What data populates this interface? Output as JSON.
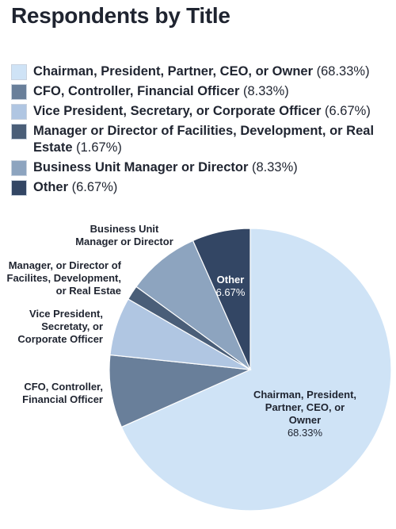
{
  "chart_data": {
    "type": "pie",
    "title": "Respondents by Title",
    "legend_position": "top",
    "colors": [
      "#cfe3f6",
      "#697f9a",
      "#b0c6e2",
      "#4a5e78",
      "#8da4bf",
      "#334664"
    ],
    "slices": [
      {
        "legend_label": "Chairman, President, Partner, CEO, or Owner",
        "legend_value": "(68.33%)",
        "value": 68.33
      },
      {
        "legend_label": "CFO, Controller, Financial Officer",
        "legend_value": "(8.33%)",
        "value": 8.33
      },
      {
        "legend_label": "Vice President, Secretary, or Corporate Officer",
        "legend_value": "(6.67%)",
        "value": 6.67
      },
      {
        "legend_label": "Manager or Director of Facilities, Development, or Real Estate",
        "legend_value": "(1.67%)",
        "value": 1.67
      },
      {
        "legend_label": "Business Unit Manager or Director",
        "legend_value": "(8.33%)",
        "value": 8.33
      },
      {
        "legend_label": "Other",
        "legend_value": "(6.67%)",
        "value": 6.67
      }
    ],
    "annotations": {
      "chairman_lines": [
        "Chairman, President,",
        "Partner, CEO, or",
        "Owner"
      ],
      "chairman_value": "68.33%",
      "other_line": "Other",
      "other_value": "6.67%",
      "cfo_lines": [
        "CFO, Controller,",
        "Financial Officer"
      ],
      "vp_lines": [
        "Vice President,",
        "Secretaty, or",
        "Corporate Officer"
      ],
      "manager_lines": [
        "Manager, or Director of",
        "Facilites, Development,",
        "or Real  Estae"
      ],
      "business_lines": [
        "Business Unit",
        "Manager or Director"
      ]
    }
  }
}
